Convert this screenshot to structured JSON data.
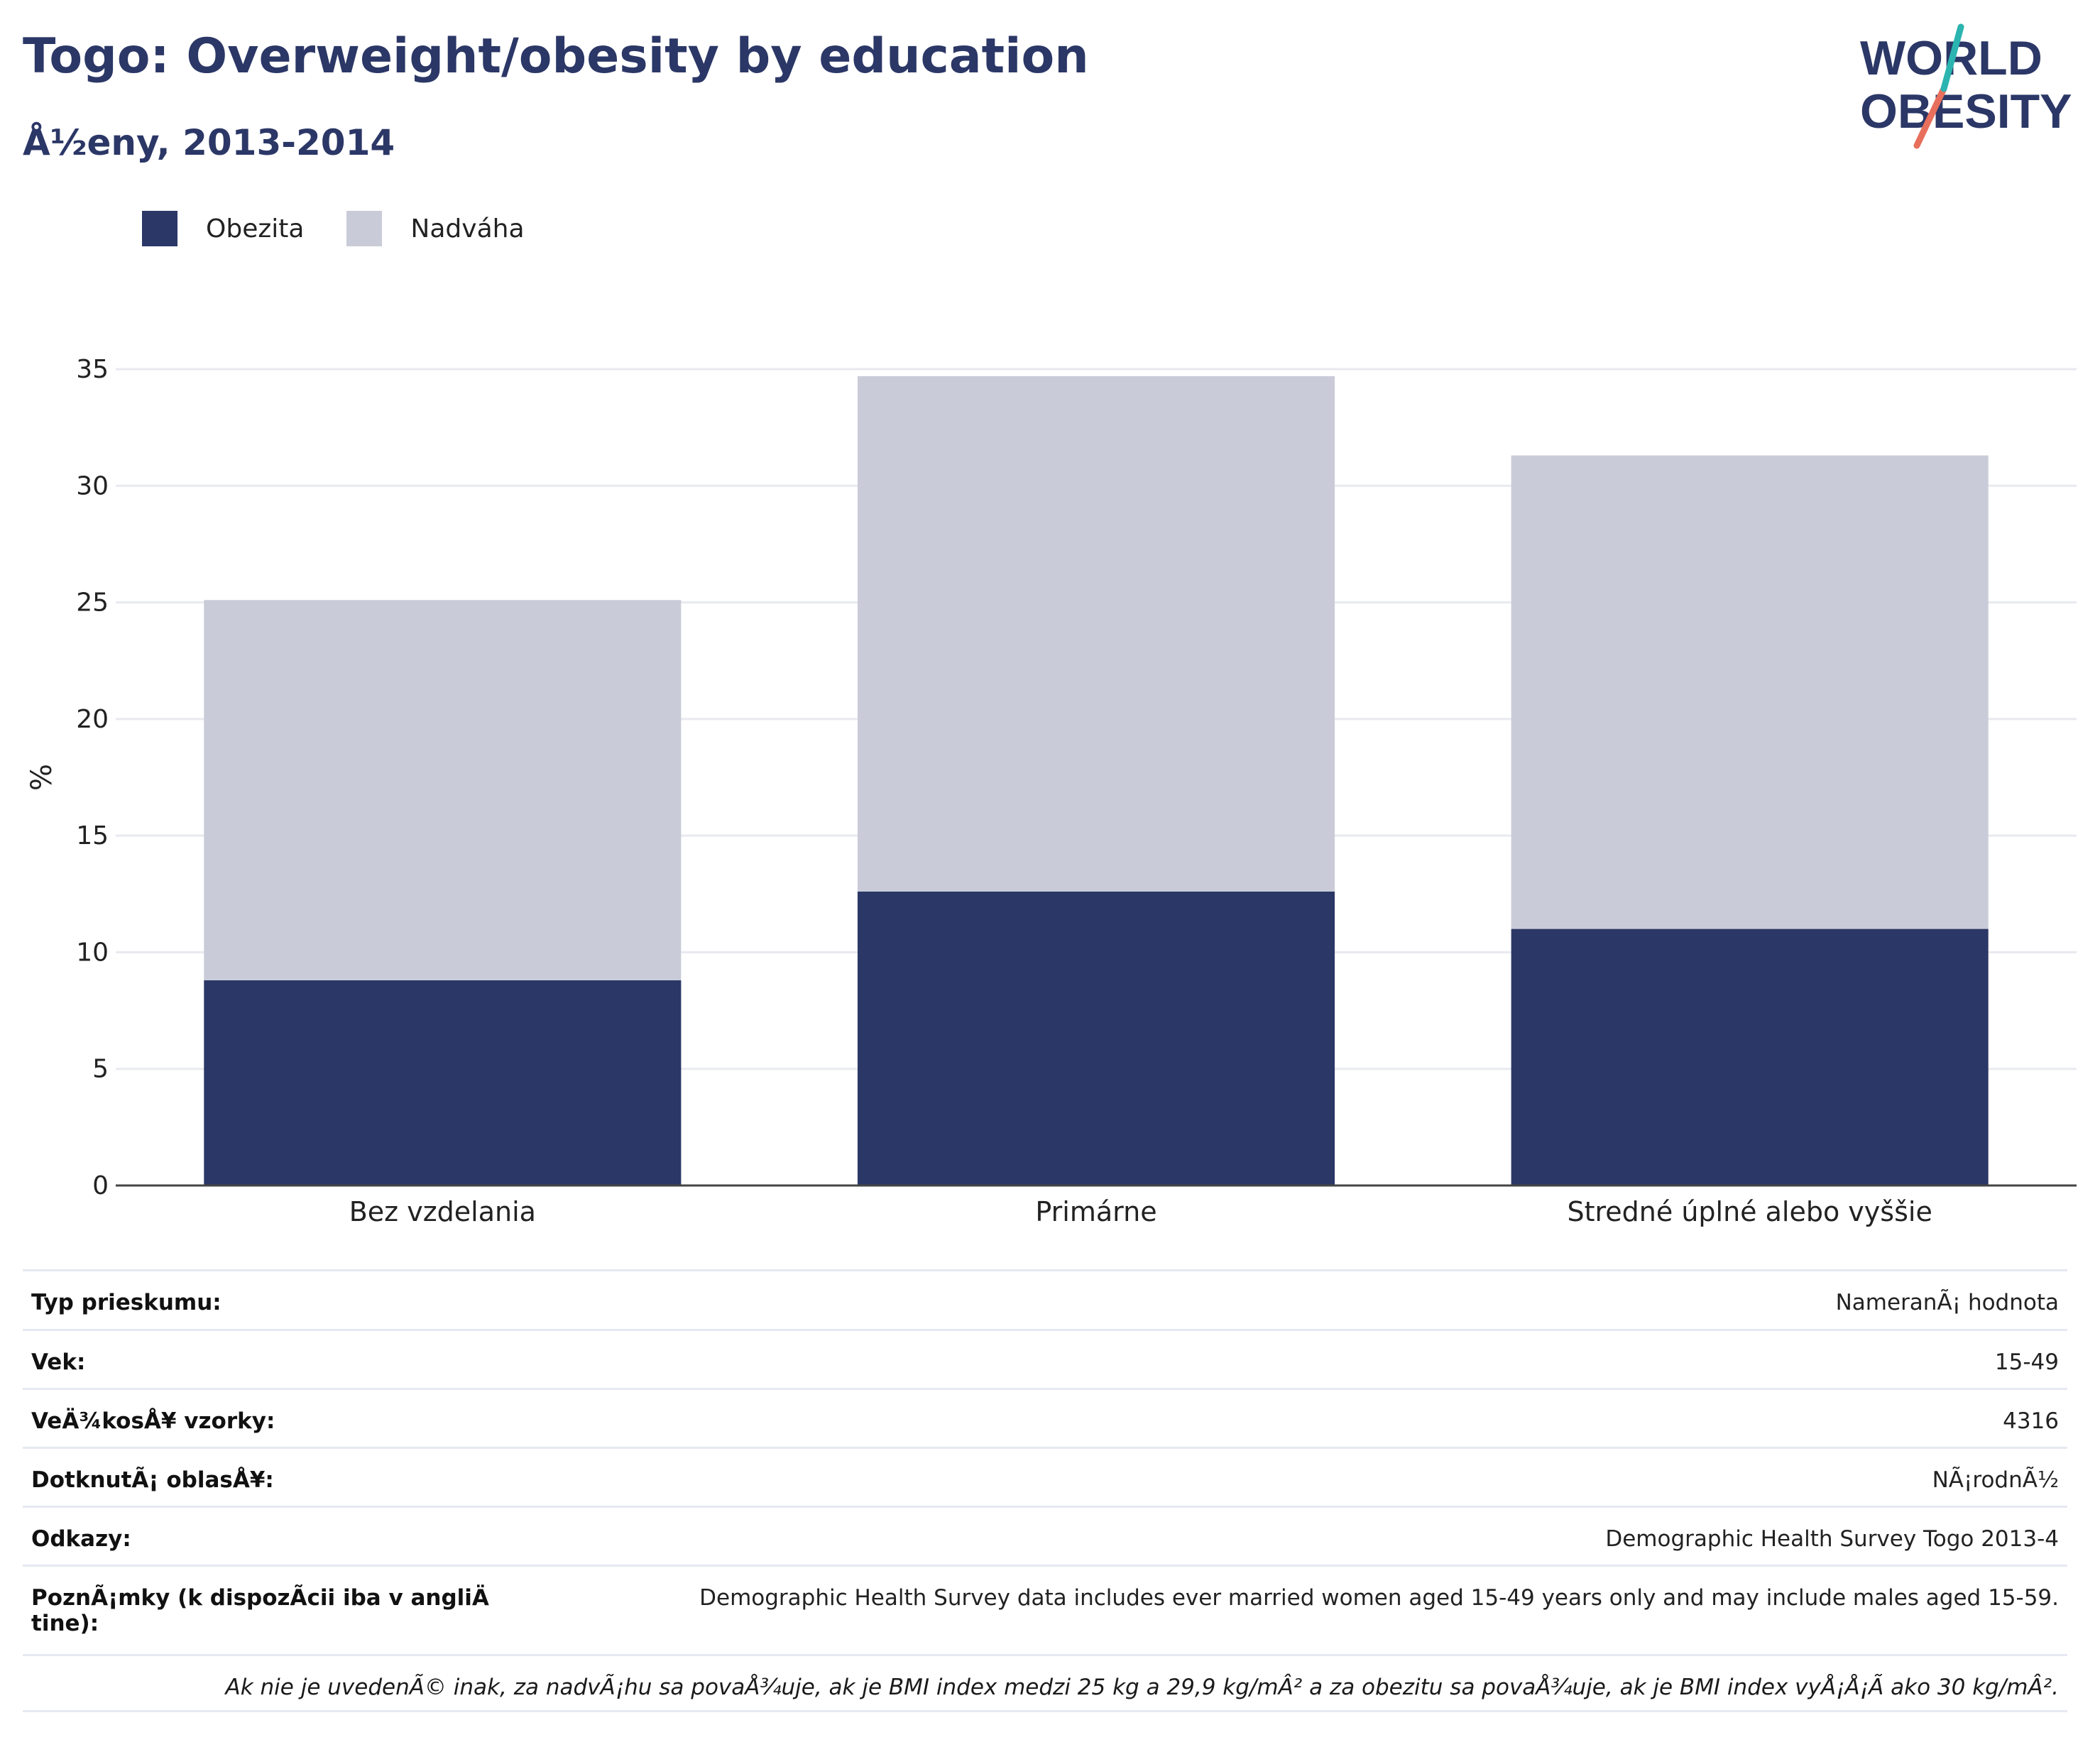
{
  "title": "Togo: Overweight/obesity by education",
  "subtitle": "Å½eny, 2013-2014",
  "logo": {
    "line1": "WORLD",
    "line2": "OBESITY"
  },
  "legend": [
    {
      "label": "Obezita",
      "color": "#2b3766"
    },
    {
      "label": "Nadváha",
      "color": "#c9ccd8"
    }
  ],
  "chart_data": {
    "type": "bar",
    "stacked": true,
    "categories": [
      "Bez vzdelania",
      "Primárne",
      "Stredné úplné alebo vyššie"
    ],
    "series": [
      {
        "name": "Obezita",
        "color": "#2b3766",
        "values": [
          8.8,
          12.6,
          11.0
        ]
      },
      {
        "name": "Nadváha",
        "color": "#c9ccd8",
        "values": [
          16.3,
          22.1,
          20.3
        ]
      }
    ],
    "ylabel": "%",
    "ylim": [
      0,
      35
    ],
    "yticks": [
      0,
      5,
      10,
      15,
      20,
      25,
      30,
      35
    ],
    "grid": true,
    "legend_position": "top-left"
  },
  "meta": {
    "rows": [
      {
        "key": "Typ prieskumu:",
        "value": "NameranÃ¡ hodnota"
      },
      {
        "key": "Vek:",
        "value": "15-49"
      },
      {
        "key": "VeÄ¾kosÅ¥ vzorky:",
        "value": "4316"
      },
      {
        "key": "DotknutÃ¡ oblasÅ¥:",
        "value": "NÃ¡rodnÃ½"
      },
      {
        "key": "Odkazy:",
        "value": "Demographic Health Survey Togo 2013-4"
      },
      {
        "key": "PoznÃ¡mky (k dispozÃcii iba v angliÄ tine):",
        "value": "Demographic Health Survey data includes ever married women aged 15-49 years only and may include males aged 15-59."
      }
    ],
    "footnote": "Ak nie je uvedenÃ© inak, za nadvÃ¡hu sa povaÅ¾uje, ak je BMI index medzi 25 kg a 29,9 kg/mÂ² a za obezitu sa povaÅ¾uje, ak je BMI index vyÅ¡Å¡Ã ako 30 kg/mÂ²."
  }
}
